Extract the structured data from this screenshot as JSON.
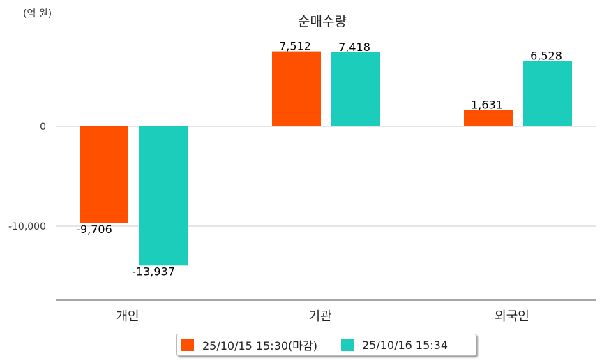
{
  "chart_data": {
    "type": "bar",
    "title": "순매수량",
    "ylabel": "(억 원)",
    "xlabel": "",
    "categories": [
      "개인",
      "기관",
      "외국인"
    ],
    "series": [
      {
        "name": "25/10/15 15:30(마감)",
        "color": "#ff5000",
        "values": [
          -9706,
          7512,
          1631
        ],
        "labels": [
          "-9,706",
          "7,512",
          "1,631"
        ]
      },
      {
        "name": "25/10/16 15:34",
        "color": "#1ccdbb",
        "values": [
          -13937,
          7418,
          6528
        ],
        "labels": [
          "-13,937",
          "7,418",
          "6,528"
        ]
      }
    ],
    "yticks": [
      {
        "value": 0,
        "label": "0"
      },
      {
        "value": -10000,
        "label": "-10,000"
      }
    ],
    "ylim": [
      -17400,
      12600
    ],
    "grid": true,
    "legend_position": "bottom"
  }
}
